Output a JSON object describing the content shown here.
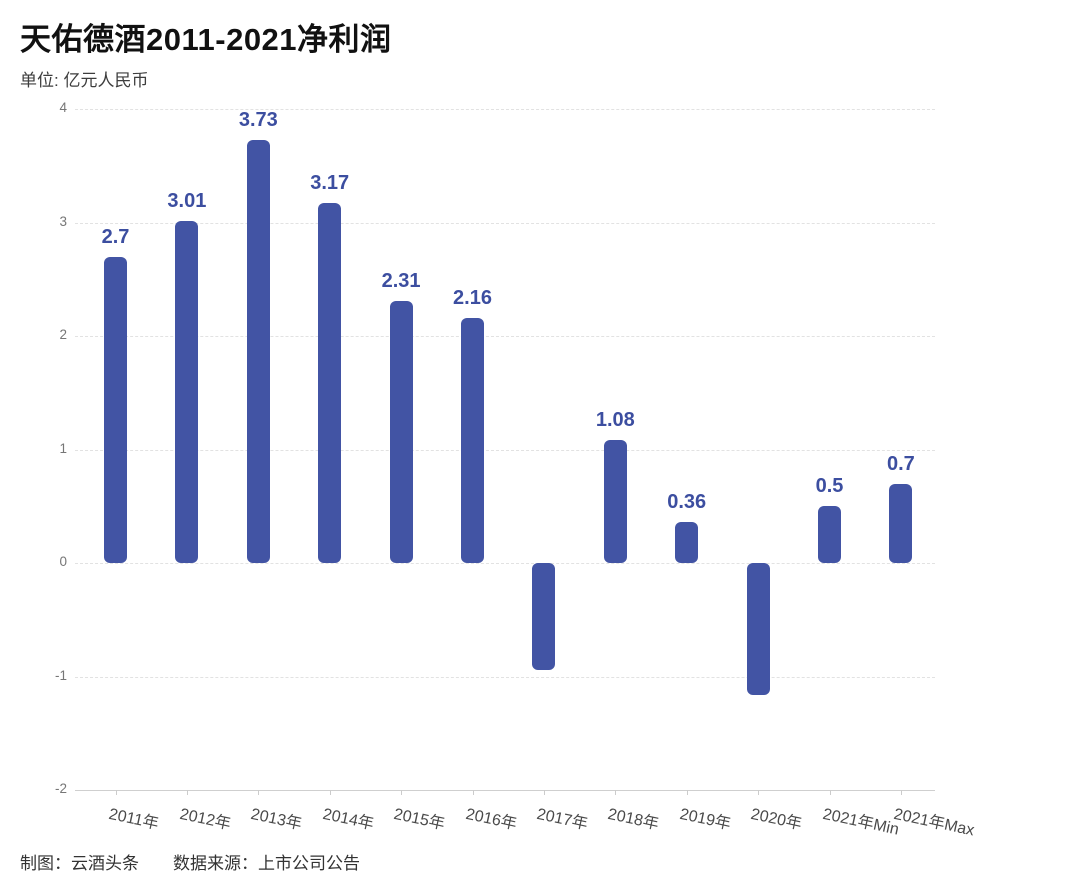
{
  "header": {
    "title": "天佑德酒2011-2021净利润",
    "unit_label": "单位: 亿元人民币"
  },
  "footer": {
    "credit": "制图：云酒头条",
    "source": "数据来源：上市公司公告"
  },
  "colors": {
    "bar": "#4254A4",
    "value_label": "#3C4EA0",
    "grid": "#e2e2e2",
    "axis_line": "#cfcfcf"
  },
  "chart_data": {
    "type": "bar",
    "title": "天佑德酒2011-2021净利润",
    "subtitle": "单位: 亿元人民币",
    "xlabel": "",
    "ylabel": "亿元人民币",
    "categories": [
      "2011年",
      "2012年",
      "2013年",
      "2014年",
      "2015年",
      "2016年",
      "2017年",
      "2018年",
      "2019年",
      "2020年",
      "2021年Min",
      "2021年Max"
    ],
    "values": [
      2.7,
      3.01,
      3.73,
      3.17,
      2.31,
      2.16,
      -0.94,
      1.08,
      0.36,
      -1.16,
      0.5,
      0.7
    ],
    "data_labels": [
      "2.7",
      "3.01",
      "3.73",
      "3.17",
      "2.31",
      "2.16",
      "",
      "1.08",
      "0.36",
      "",
      "0.5",
      "0.7"
    ],
    "ylim": [
      -2,
      4
    ],
    "yticks": [
      -2,
      -1,
      0,
      1,
      2,
      3,
      4
    ],
    "grid": "horizontal-dashed",
    "legend_position": "none",
    "bar_color": "#4254A4",
    "label_color": "#3C4EA0",
    "note": "negative bars (2017年, 2020年) shown without data labels; values estimated from gridlines"
  }
}
